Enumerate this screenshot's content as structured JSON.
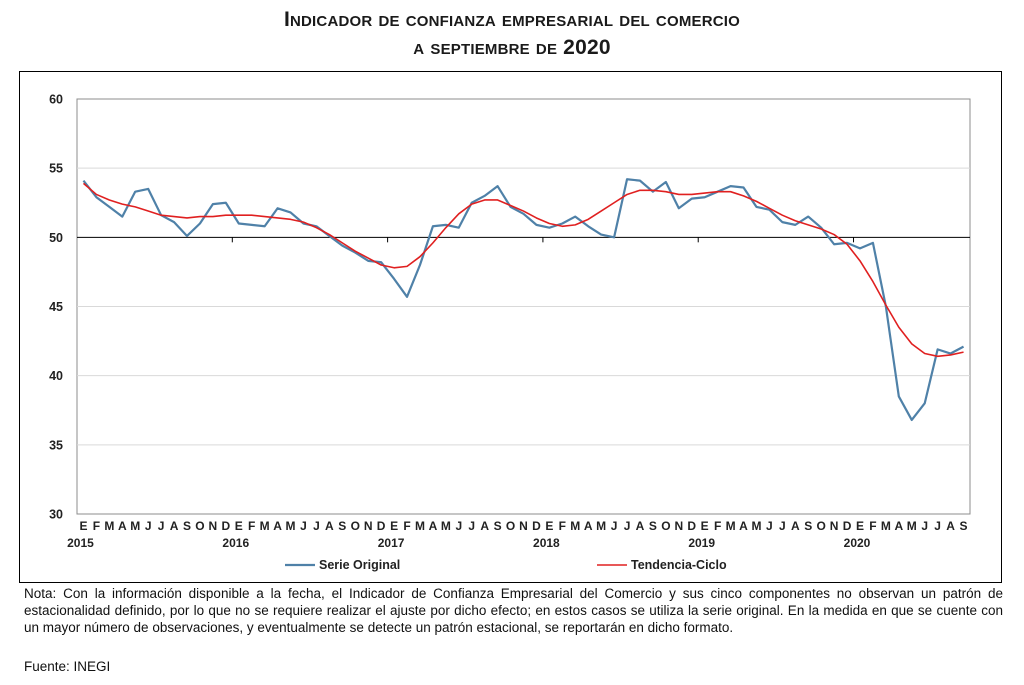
{
  "title": {
    "line1": "Indicador de confianza empresarial del comercio",
    "line2": "a septiembre de 2020"
  },
  "note": "Nota: Con la información disponible a la fecha, el Indicador de Confianza Empresarial del Comercio y sus cinco componentes no observan un patrón de estacionalidad definido, por lo que no se requiere realizar el ajuste por dicho efecto; en estos casos se utiliza la serie original. En la medida en que se cuente con un mayor número de observaciones, y eventualmente se detecte un patrón estacional, se reportarán en dicho formato.",
  "source": "Fuente: INEGI",
  "chart_data": {
    "type": "line",
    "ylim": [
      30,
      60
    ],
    "yticks": [
      30,
      35,
      40,
      45,
      50,
      55,
      60
    ],
    "reference_line": 50,
    "grid": true,
    "legend_position": "bottom",
    "month_labels": [
      "E",
      "F",
      "M",
      "A",
      "M",
      "J",
      "J",
      "A",
      "S",
      "O",
      "N",
      "D",
      "E",
      "F",
      "M",
      "A",
      "M",
      "J",
      "J",
      "A",
      "S",
      "O",
      "N",
      "D",
      "E",
      "F",
      "M",
      "A",
      "M",
      "J",
      "J",
      "A",
      "S",
      "O",
      "N",
      "D",
      "E",
      "F",
      "M",
      "A",
      "M",
      "J",
      "J",
      "A",
      "S",
      "O",
      "N",
      "D",
      "E",
      "F",
      "M",
      "A",
      "M",
      "J",
      "J",
      "A",
      "S",
      "O",
      "N",
      "D",
      "E",
      "F",
      "M",
      "A",
      "M",
      "J",
      "J",
      "A",
      "S"
    ],
    "year_labels": [
      {
        "index": 0,
        "label": "2015"
      },
      {
        "index": 12,
        "label": "2016"
      },
      {
        "index": 24,
        "label": "2017"
      },
      {
        "index": 36,
        "label": "2018"
      },
      {
        "index": 48,
        "label": "2019"
      },
      {
        "index": 60,
        "label": "2020"
      }
    ],
    "series": [
      {
        "name": "Serie Original",
        "color": "#4f81a8",
        "values": [
          54.1,
          52.9,
          52.2,
          51.5,
          53.3,
          53.5,
          51.6,
          51.1,
          50.1,
          51.0,
          52.4,
          52.5,
          51.0,
          50.9,
          50.8,
          52.1,
          51.8,
          51.0,
          50.8,
          50.1,
          49.4,
          48.9,
          48.3,
          48.2,
          47.0,
          45.7,
          48.0,
          50.8,
          50.9,
          50.7,
          52.5,
          53.0,
          53.7,
          52.2,
          51.7,
          50.9,
          50.7,
          51.0,
          51.5,
          50.8,
          50.2,
          50.0,
          54.2,
          54.1,
          53.3,
          54.0,
          52.1,
          52.8,
          52.9,
          53.3,
          53.7,
          53.6,
          52.2,
          52.0,
          51.1,
          50.9,
          51.5,
          50.7,
          49.5,
          49.6,
          49.2,
          49.6,
          45.0,
          38.5,
          36.8,
          38.0,
          41.9,
          41.6,
          42.1
        ]
      },
      {
        "name": "Tendencia-Ciclo",
        "color": "#e02020",
        "values": [
          53.9,
          53.1,
          52.7,
          52.4,
          52.2,
          51.9,
          51.6,
          51.5,
          51.4,
          51.5,
          51.5,
          51.6,
          51.6,
          51.6,
          51.5,
          51.4,
          51.3,
          51.1,
          50.7,
          50.2,
          49.6,
          49.0,
          48.5,
          48.0,
          47.8,
          47.9,
          48.6,
          49.6,
          50.7,
          51.7,
          52.4,
          52.7,
          52.7,
          52.3,
          51.9,
          51.4,
          51.0,
          50.8,
          50.9,
          51.3,
          51.9,
          52.5,
          53.1,
          53.4,
          53.4,
          53.3,
          53.1,
          53.1,
          53.2,
          53.3,
          53.3,
          53.0,
          52.6,
          52.1,
          51.6,
          51.2,
          50.9,
          50.6,
          50.2,
          49.5,
          48.3,
          46.8,
          45.1,
          43.5,
          42.3,
          41.6,
          41.4,
          41.5,
          41.7
        ]
      }
    ]
  }
}
